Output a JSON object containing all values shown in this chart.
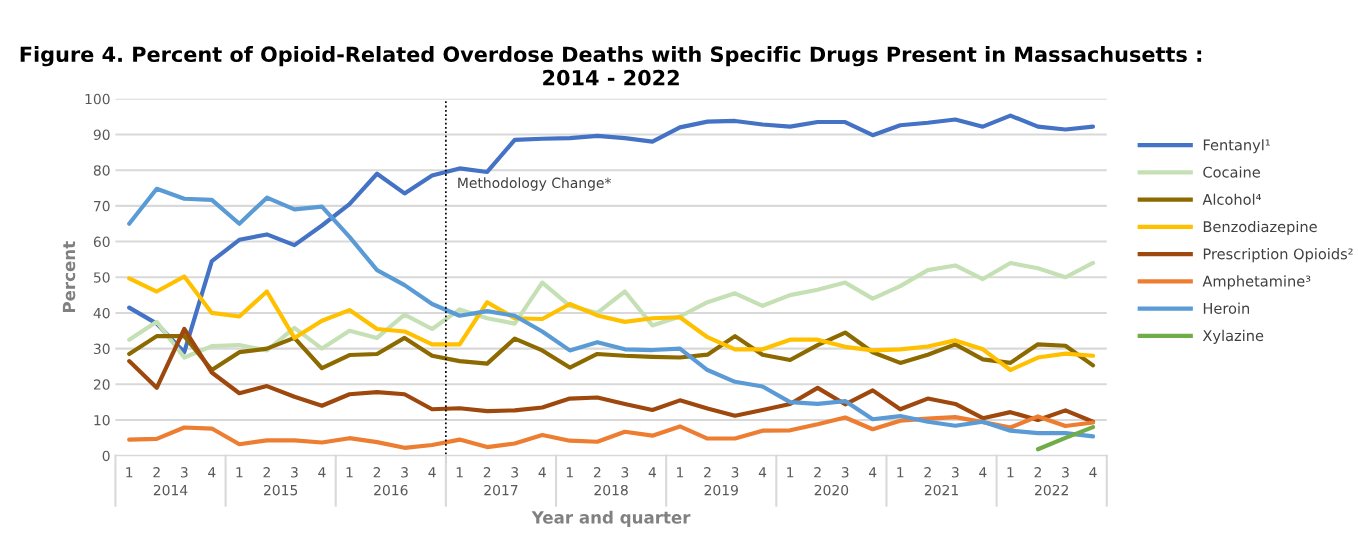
{
  "chart_data": {
    "type": "line",
    "title": "Figure 4. Percent of Opioid-Related Overdose Deaths with Specific Drugs Present in Massachusetts : 2014 - 2022",
    "xlabel": "Year and quarter",
    "ylabel": "Percent",
    "categories": [
      "1",
      "2",
      "3",
      "4",
      "1",
      "2",
      "3",
      "4",
      "1",
      "2",
      "3",
      "4",
      "1",
      "2",
      "3",
      "4",
      "1",
      "2",
      "3",
      "4",
      "1",
      "2",
      "3",
      "4",
      "1",
      "2",
      "3",
      "4",
      "1",
      "2",
      "3",
      "4",
      "1",
      "2",
      "3",
      "4"
    ],
    "annotations": [
      "2014",
      "2015",
      "2016",
      "2017",
      "2018",
      "2019",
      "2020",
      "2021",
      "2022",
      "Methodology Change*"
    ],
    "series": [
      {
        "name": "Fentanyl¹",
        "color": "#4472c4",
        "values": [
          41.5,
          37,
          29,
          54.5,
          60.5,
          62,
          59,
          64.5,
          70.5,
          79,
          73.5,
          78.5,
          80.5,
          79.5,
          88.5,
          88.8,
          89,
          89.6,
          89,
          88,
          92,
          93.6,
          93.8,
          92.8,
          92.2,
          93.5,
          93.5,
          89.8,
          92.6,
          93.3,
          94.2,
          92.2,
          95.3,
          92.2,
          91.4,
          92.2
        ]
      },
      {
        "name": "Cocaine",
        "color": "#c5e0b4",
        "values": [
          32.5,
          37.5,
          27.5,
          30.7,
          31,
          29.5,
          35.8,
          30,
          35,
          33,
          39.5,
          35.5,
          41,
          38.5,
          37,
          48.5,
          42,
          40,
          46,
          36.5,
          39,
          43,
          45.5,
          42,
          45,
          46.5,
          48.5,
          44,
          47.5,
          52,
          53.3,
          49.5,
          54,
          52.5,
          50,
          54
        ]
      },
      {
        "name": "Alcohol⁴",
        "color": "#8c6a00",
        "values": [
          28.5,
          33.5,
          33.5,
          24,
          29,
          30,
          33,
          24.5,
          28.2,
          28.5,
          33,
          28,
          26.5,
          25.8,
          32.8,
          29.5,
          24.7,
          28.5,
          28,
          27.7,
          27.5,
          28.3,
          33.5,
          28.3,
          26.8,
          31,
          34.5,
          29,
          26,
          28.3,
          31.2,
          27,
          26,
          31.2,
          30.8,
          25.3
        ]
      },
      {
        "name": "Benzodiazepine",
        "color": "#ffc000",
        "values": [
          49.7,
          46,
          50.2,
          40,
          39,
          46,
          33,
          37.8,
          40.8,
          35.5,
          34.8,
          31.2,
          31.2,
          43,
          38.5,
          38.3,
          42.5,
          39.3,
          37.5,
          38.5,
          38.8,
          33.2,
          29.8,
          29.8,
          32.5,
          32.5,
          30.5,
          29.5,
          29.8,
          30.6,
          32.3,
          29.8,
          24,
          27.5,
          28.6,
          28
        ]
      },
      {
        "name": "Prescription Opioids²",
        "color": "#9e480e",
        "values": [
          26.5,
          19,
          35.5,
          23.3,
          17.5,
          19.5,
          16.5,
          14,
          17.2,
          17.8,
          17.2,
          13,
          13.3,
          12.5,
          12.7,
          13.5,
          16,
          16.3,
          14.5,
          12.8,
          15.5,
          13.2,
          11.2,
          12.8,
          14.5,
          19,
          14.4,
          18.3,
          13,
          16,
          14.5,
          10.5,
          12.2,
          10,
          12.7,
          9.5
        ]
      },
      {
        "name": "Amphetamine³",
        "color": "#ed7d31",
        "values": [
          4.5,
          4.7,
          7.9,
          7.6,
          3.2,
          4.3,
          4.3,
          3.7,
          4.9,
          3.8,
          2.2,
          3,
          4.5,
          2.4,
          3.4,
          5.8,
          4.2,
          3.9,
          6.7,
          5.6,
          8.2,
          4.8,
          4.8,
          7,
          7.1,
          8.8,
          10.7,
          7.4,
          9.8,
          10.4,
          10.8,
          9.4,
          7.9,
          11,
          8.3,
          9.3
        ]
      },
      {
        "name": "Heroin",
        "color": "#5b9bd5",
        "values": [
          65,
          74.8,
          72,
          71.7,
          65,
          72.3,
          69,
          69.8,
          61.3,
          52,
          47.8,
          42.5,
          39.2,
          40.5,
          39.2,
          34.8,
          29.5,
          31.8,
          29.8,
          29.6,
          30,
          24,
          20.7,
          19.4,
          15,
          14.5,
          15.3,
          10.2,
          11.1,
          9.5,
          8.4,
          9.5,
          7,
          6.3,
          6.3,
          5.4
        ]
      },
      {
        "name": "Xylazine",
        "color": "#70ad47",
        "values": [
          null,
          null,
          null,
          null,
          null,
          null,
          null,
          null,
          null,
          null,
          null,
          null,
          null,
          null,
          null,
          null,
          null,
          null,
          null,
          null,
          null,
          null,
          null,
          null,
          null,
          null,
          null,
          null,
          null,
          null,
          null,
          null,
          null,
          1.8,
          5,
          8
        ]
      }
    ],
    "ylim": [
      0,
      100
    ],
    "yticks": [
      0,
      10,
      20,
      30,
      40,
      50,
      60,
      70,
      80,
      90,
      100
    ],
    "grid": "y",
    "legend": "right",
    "marker": "none",
    "line_style": "solid"
  }
}
